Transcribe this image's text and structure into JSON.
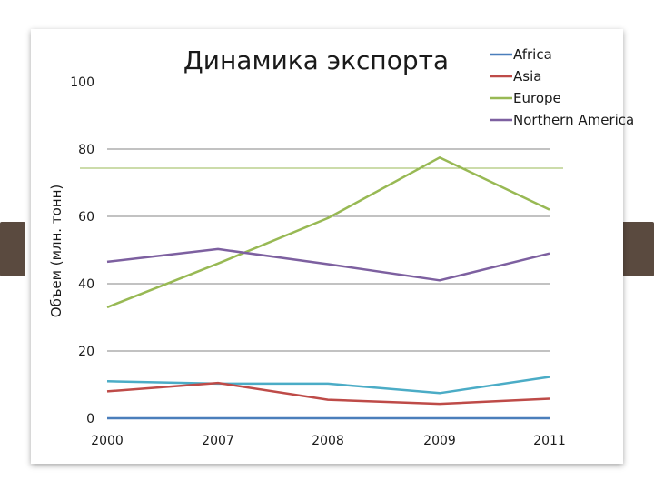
{
  "chart_data": {
    "type": "line",
    "title": "Динамика экспорта",
    "ylabel": "Объем (млн. тонн)",
    "xlabel": "",
    "categories": [
      "2000",
      "2007",
      "2008",
      "2009",
      "2011"
    ],
    "ylim": [
      0,
      100
    ],
    "y_ticks": [
      "0",
      "20",
      "40",
      "60",
      "80",
      "100"
    ],
    "grid": "horizontal",
    "legend_position": "top-right",
    "series": [
      {
        "name": "Africa",
        "color": "#4a7ebb",
        "values": [
          0,
          0,
          0,
          0,
          0
        ]
      },
      {
        "name": "Asia",
        "color": "#be4b48",
        "values": [
          8,
          10.5,
          5.5,
          4.3,
          5.8
        ]
      },
      {
        "name": "Europe",
        "color": "#98b954",
        "values": [
          33,
          46,
          59.5,
          77.5,
          62
        ]
      },
      {
        "name": "Northern America",
        "color": "#7d60a0",
        "values": [
          46.5,
          50.3,
          45.8,
          41,
          49
        ]
      }
    ],
    "extra_series": [
      {
        "color": "#4bacc6",
        "values": [
          11,
          10.3,
          10.3,
          7.5,
          12.3
        ]
      }
    ]
  }
}
